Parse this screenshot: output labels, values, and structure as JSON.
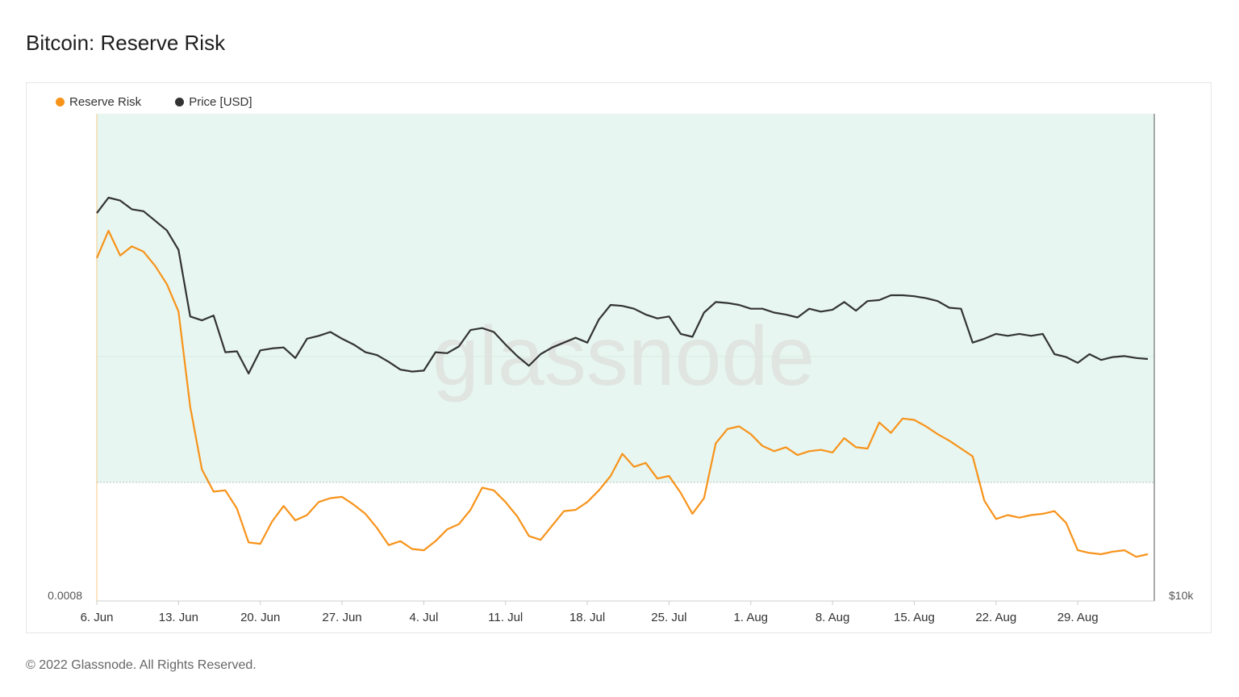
{
  "title": "Bitcoin: Reserve Risk",
  "footer": "© 2022 Glassnode. All Rights Reserved.",
  "watermark": "glassnode",
  "legend": [
    {
      "label": "Reserve Risk",
      "color": "#f7931a"
    },
    {
      "label": "Price [USD]",
      "color": "#333333"
    }
  ],
  "chart_data": {
    "type": "line",
    "x_tick_labels": [
      "6. Jun",
      "13. Jun",
      "20. Jun",
      "27. Jun",
      "4. Jul",
      "11. Jul",
      "18. Jul",
      "25. Jul",
      "1. Aug",
      "8. Aug",
      "15. Aug",
      "22. Aug",
      "29. Aug"
    ],
    "left_axis_label": "0.0008",
    "right_axis_label": "$10k",
    "threshold_band": {
      "color": "#e7f6f0",
      "boundary": "dotted"
    },
    "series": [
      {
        "name": "Reserve Risk",
        "color": "#f7931a",
        "axis": "left",
        "values": [
          0.0038,
          0.00401,
          0.00382,
          0.00389,
          0.00385,
          0.00374,
          0.0036,
          0.00339,
          0.00266,
          0.00218,
          0.00201,
          0.00202,
          0.00188,
          0.00162,
          0.00161,
          0.00178,
          0.0019,
          0.00179,
          0.00183,
          0.00193,
          0.00196,
          0.00197,
          0.00191,
          0.00184,
          0.00173,
          0.0016,
          0.00163,
          0.00157,
          0.00156,
          0.00163,
          0.00172,
          0.00176,
          0.00187,
          0.00204,
          0.00202,
          0.00193,
          0.00182,
          0.00167,
          0.00164,
          0.00175,
          0.00186,
          0.00187,
          0.00193,
          0.00202,
          0.00213,
          0.0023,
          0.0022,
          0.00223,
          0.00211,
          0.00213,
          0.002,
          0.00184,
          0.00196,
          0.00238,
          0.00249,
          0.00251,
          0.00245,
          0.00236,
          0.00232,
          0.00235,
          0.00229,
          0.00232,
          0.00233,
          0.00231,
          0.00242,
          0.00235,
          0.00234,
          0.00254,
          0.00246,
          0.00257,
          0.00256,
          0.00251,
          0.00245,
          0.0024,
          0.00234,
          0.00228,
          0.00194,
          0.0018,
          0.00183,
          0.00181,
          0.00183,
          0.00184,
          0.00186,
          0.00177,
          0.00156,
          0.00154,
          0.00153,
          0.00155,
          0.00156,
          0.00151,
          0.00153
        ]
      },
      {
        "name": "Price [USD]",
        "color": "#333333",
        "axis": "right",
        "values": [
          31200,
          32000,
          31850,
          31400,
          31300,
          30800,
          30300,
          29300,
          25850,
          25650,
          25900,
          24000,
          24050,
          22900,
          24100,
          24200,
          24250,
          23700,
          24700,
          24850,
          25050,
          24700,
          24400,
          24000,
          23850,
          23500,
          23100,
          23000,
          23050,
          24000,
          23950,
          24300,
          25150,
          25250,
          25050,
          24400,
          23800,
          23300,
          23900,
          24250,
          24500,
          24750,
          24500,
          25700,
          26450,
          26400,
          26250,
          25950,
          25750,
          25850,
          24950,
          24800,
          26050,
          26600,
          26550,
          26450,
          26250,
          26250,
          26050,
          25950,
          25800,
          26250,
          26100,
          26200,
          26600,
          26150,
          26650,
          26700,
          26950,
          26950,
          26900,
          26800,
          26650,
          26300,
          26250,
          24500,
          24700,
          24950,
          24850,
          24950,
          24850,
          24950,
          23900,
          23750,
          23450,
          23900,
          23600,
          23750,
          23800,
          23700,
          23650
        ]
      }
    ]
  }
}
